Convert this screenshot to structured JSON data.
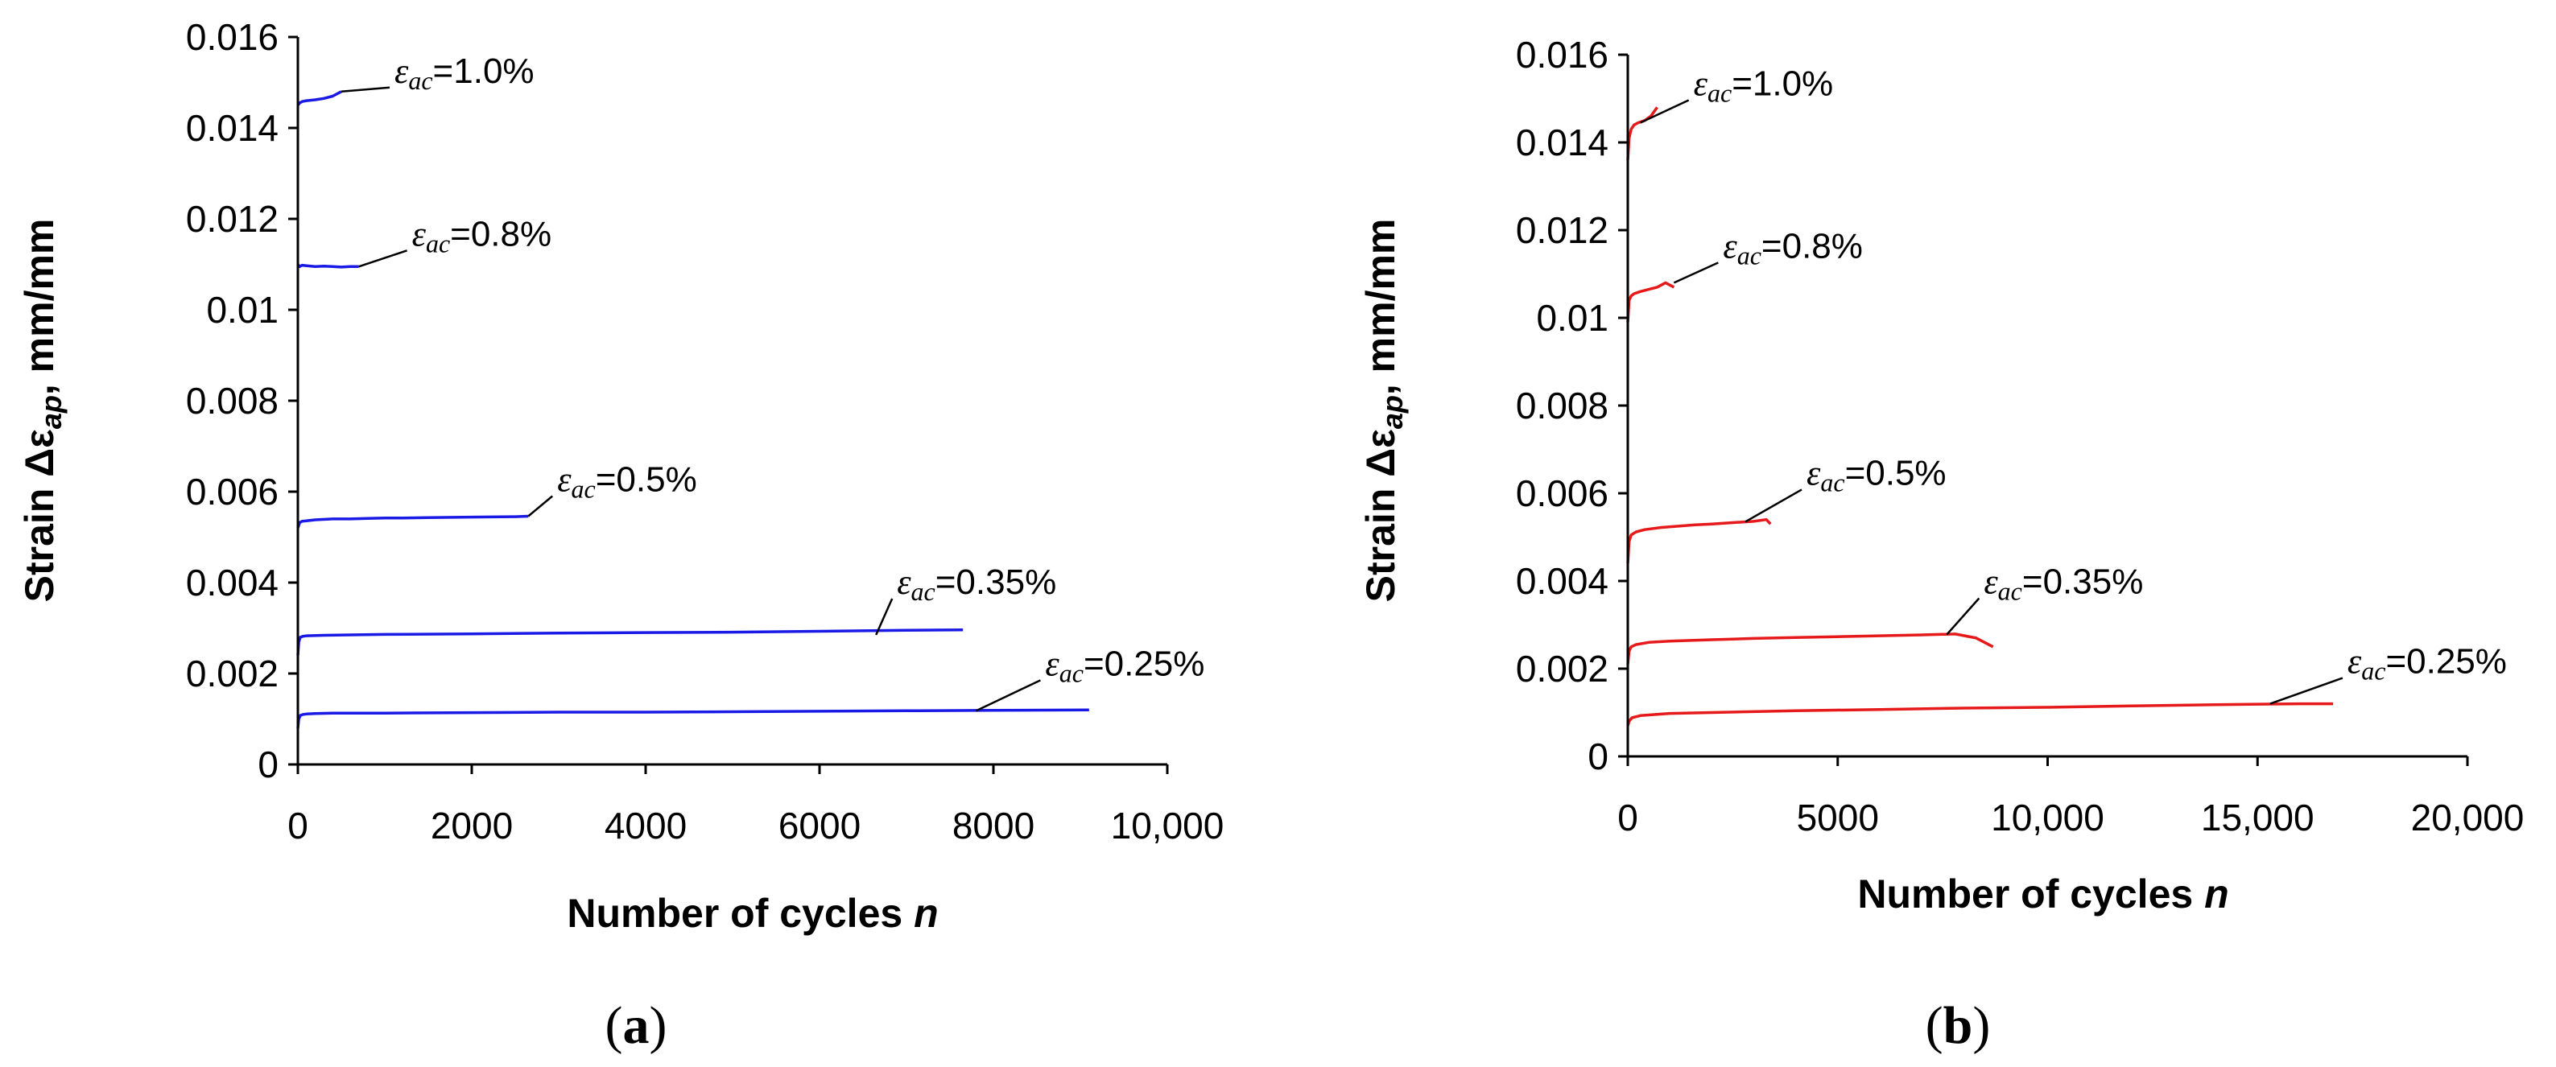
{
  "figure": {
    "panels": [
      {
        "label_open": "(",
        "label_letter": "a",
        "label_close": ")"
      },
      {
        "label_open": "(",
        "label_letter": "b",
        "label_close": ")"
      }
    ]
  },
  "chart_data": [
    {
      "type": "line",
      "panel": "a",
      "color": "#1a1ae6",
      "xlabel_main": "Number of cycles ",
      "xlabel_var": "n",
      "ylabel_main": "Strain Δε",
      "ylabel_sub": "ap",
      "ylabel_unit": ", mm/mm",
      "xlim": [
        0,
        10000
      ],
      "ylim": [
        0,
        0.016
      ],
      "xticks": [
        0,
        2000,
        4000,
        6000,
        8000,
        10000
      ],
      "xtick_labels": [
        "0",
        "2000",
        "4000",
        "6000",
        "8000",
        "10,000"
      ],
      "yticks": [
        0,
        0.002,
        0.004,
        0.006,
        0.008,
        0.01,
        0.012,
        0.014,
        0.016
      ],
      "ytick_labels": [
        "0",
        "0.002",
        "0.004",
        "0.006",
        "0.008",
        "0.01",
        "0.012",
        "0.014",
        "0.016"
      ],
      "grid": false,
      "series": [
        {
          "name": "εac=1.0%",
          "eps": "ε",
          "sub": "ac",
          "value": "=1.0%",
          "x": [
            0,
            20,
            50,
            100,
            200,
            300,
            400,
            500
          ],
          "y": [
            0.0145,
            0.01455,
            0.01458,
            0.0146,
            0.01462,
            0.01465,
            0.0147,
            0.0148
          ],
          "anchor": [
            500,
            0.0148
          ]
        },
        {
          "name": "εac=0.8%",
          "eps": "ε",
          "sub": "ac",
          "value": "=0.8%",
          "x": [
            0,
            20,
            50,
            100,
            200,
            300,
            400,
            500,
            600,
            700
          ],
          "y": [
            0.011,
            0.01095,
            0.01098,
            0.01097,
            0.01095,
            0.01096,
            0.01095,
            0.01094,
            0.01095,
            0.01095
          ],
          "anchor": [
            700,
            0.01095
          ]
        },
        {
          "name": "εac=0.5%",
          "eps": "ε",
          "sub": "ac",
          "value": "=0.5%",
          "x": [
            0,
            20,
            50,
            100,
            200,
            400,
            600,
            800,
            1000,
            1200,
            1500,
            2000,
            2500,
            2650
          ],
          "y": [
            0.0052,
            0.00532,
            0.00535,
            0.00536,
            0.00538,
            0.0054,
            0.0054,
            0.00541,
            0.00542,
            0.00542,
            0.00543,
            0.00544,
            0.00545,
            0.00546
          ],
          "anchor": [
            2650,
            0.00546
          ]
        },
        {
          "name": "εac=0.35%",
          "eps": "ε",
          "sub": "ac",
          "value": "=0.35%",
          "x": [
            0,
            10,
            30,
            60,
            100,
            300,
            600,
            1000,
            2000,
            3000,
            4000,
            5000,
            6000,
            7000,
            7650
          ],
          "y": [
            0.0024,
            0.0027,
            0.0028,
            0.00282,
            0.00283,
            0.00284,
            0.00285,
            0.00286,
            0.00287,
            0.00289,
            0.0029,
            0.00291,
            0.00293,
            0.00295,
            0.00296
          ],
          "anchor": [
            6650,
            0.00285
          ]
        },
        {
          "name": "εac=0.25%",
          "eps": "ε",
          "sub": "ac",
          "value": "=0.25%",
          "x": [
            0,
            10,
            30,
            60,
            100,
            200,
            400,
            1000,
            2000,
            3000,
            4000,
            5000,
            6000,
            7000,
            8000,
            9100
          ],
          "y": [
            0.0008,
            0.001,
            0.00108,
            0.0011,
            0.00111,
            0.00112,
            0.00113,
            0.00113,
            0.00114,
            0.00115,
            0.00115,
            0.00116,
            0.00117,
            0.00118,
            0.00119,
            0.0012
          ],
          "anchor": [
            7800,
            0.00118
          ]
        }
      ]
    },
    {
      "type": "line",
      "panel": "b",
      "color": "#e61a1a",
      "xlabel_main": "Number of cycles ",
      "xlabel_var": "n",
      "ylabel_main": "Strain Δε",
      "ylabel_sub": "ap",
      "ylabel_unit": ", mm/mm",
      "xlim": [
        0,
        20000
      ],
      "ylim": [
        0,
        0.016
      ],
      "xticks": [
        0,
        5000,
        10000,
        15000,
        20000
      ],
      "xtick_labels": [
        "0",
        "5000",
        "10,000",
        "15,000",
        "20,000"
      ],
      "yticks": [
        0,
        0.002,
        0.004,
        0.006,
        0.008,
        0.01,
        0.012,
        0.014,
        0.016
      ],
      "ytick_labels": [
        "0",
        "0.002",
        "0.004",
        "0.006",
        "0.008",
        "0.01",
        "0.012",
        "0.014",
        "0.016"
      ],
      "grid": false,
      "series": [
        {
          "name": "εac=1.0%",
          "eps": "ε",
          "sub": "ac",
          "value": "=1.0%",
          "x": [
            0,
            30,
            80,
            150,
            250,
            400,
            550,
            700
          ],
          "y": [
            0.0136,
            0.0141,
            0.0143,
            0.0144,
            0.01445,
            0.0145,
            0.0146,
            0.0148
          ],
          "anchor": [
            300,
            0.01445
          ]
        },
        {
          "name": "εac=0.8%",
          "eps": "ε",
          "sub": "ac",
          "value": "=0.8%",
          "x": [
            0,
            30,
            80,
            150,
            300,
            500,
            700,
            900,
            1100
          ],
          "y": [
            0.0099,
            0.0104,
            0.0105,
            0.01055,
            0.0106,
            0.01065,
            0.0107,
            0.0108,
            0.0107
          ],
          "anchor": [
            1100,
            0.0108
          ]
        },
        {
          "name": "εac=0.5%",
          "eps": "ε",
          "sub": "ac",
          "value": "=0.5%",
          "x": [
            0,
            30,
            80,
            200,
            400,
            800,
            1200,
            1600,
            2000,
            2500,
            3000,
            3300,
            3400
          ],
          "y": [
            0.0044,
            0.0049,
            0.00505,
            0.00512,
            0.00517,
            0.00522,
            0.00525,
            0.00528,
            0.0053,
            0.00533,
            0.00536,
            0.0054,
            0.0053
          ],
          "anchor": [
            2800,
            0.00535
          ]
        },
        {
          "name": "εac=0.35%",
          "eps": "ε",
          "sub": "ac",
          "value": "=0.35%",
          "x": [
            0,
            30,
            80,
            200,
            500,
            1000,
            2000,
            3000,
            4000,
            5000,
            6000,
            7000,
            7800,
            8300,
            8700
          ],
          "y": [
            0.0021,
            0.0024,
            0.0025,
            0.00255,
            0.0026,
            0.00263,
            0.00266,
            0.00269,
            0.00271,
            0.00273,
            0.00275,
            0.00277,
            0.00279,
            0.0027,
            0.0025
          ],
          "anchor": [
            7600,
            0.00278
          ]
        },
        {
          "name": "εac=0.25%",
          "eps": "ε",
          "sub": "ac",
          "value": "=0.25%",
          "x": [
            0,
            30,
            100,
            300,
            1000,
            2000,
            4000,
            6000,
            8000,
            10000,
            12000,
            14000,
            16000,
            16800
          ],
          "y": [
            0.0007,
            0.0008,
            0.00088,
            0.00093,
            0.00098,
            0.001,
            0.00104,
            0.00107,
            0.0011,
            0.00112,
            0.00115,
            0.00118,
            0.0012,
            0.0012
          ],
          "anchor": [
            15300,
            0.0012
          ]
        }
      ]
    }
  ]
}
